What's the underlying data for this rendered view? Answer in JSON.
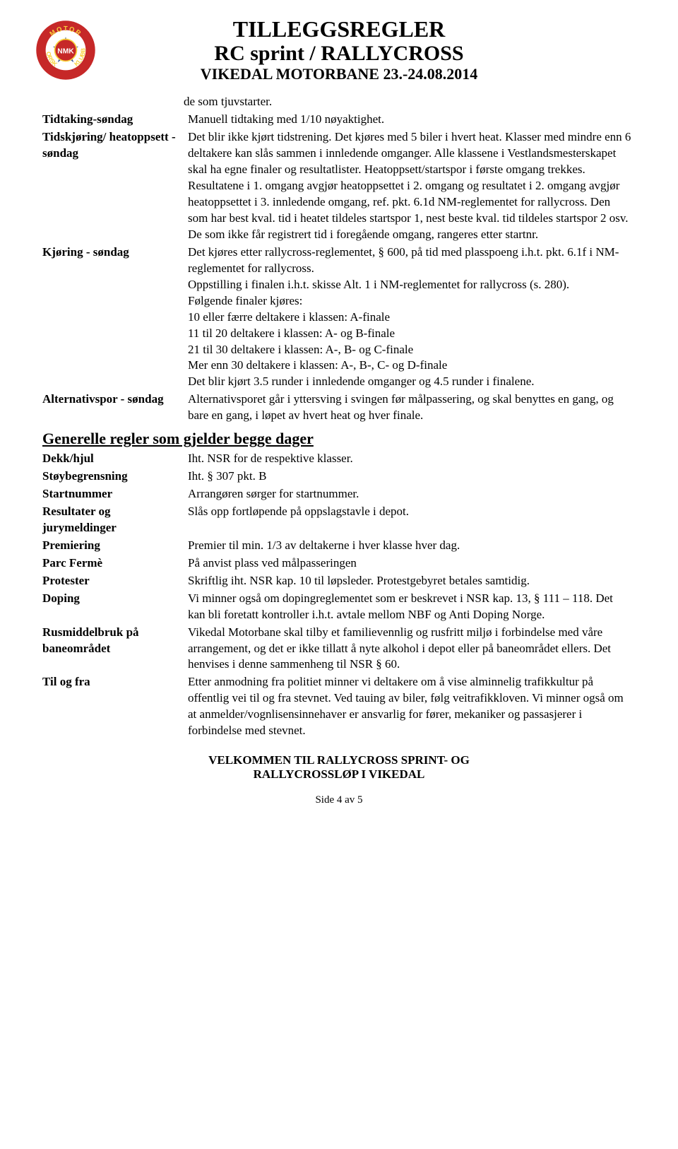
{
  "header": {
    "title_line1": "TILLEGGSREGLER",
    "title_line2": "RC sprint / RALLYCROSS",
    "title_line3": "VIKEDAL MOTORBANE 23.-24.08.2014"
  },
  "logo": {
    "outer_text_top": "NORSK",
    "outer_text_left": "MOTOR",
    "outer_text_right": "KLUBB",
    "center_text": "NMK",
    "colors": {
      "ring": "#c62828",
      "ring_text": "#f9d23c",
      "center": "#c62828",
      "center_text": "#ffffff",
      "center_outline": "#f9d23c",
      "star": "#3b5fa0"
    }
  },
  "intro_text": "de som tjuvstarter.",
  "rows_top": [
    {
      "label": "Tidtaking-søndag",
      "text": "Manuell tidtaking med 1/10 nøyaktighet."
    },
    {
      "label": "Tidskjøring/ heatoppsett  - søndag",
      "text": "Det blir ikke kjørt tidstrening. Det kjøres med 5 biler i hvert heat. Klasser med mindre enn 6 deltakere kan slås sammen i innledende omganger. Alle klassene i Vestlandsmesterskapet skal ha egne finaler og resultatlister. Heatoppsett/startspor i første omgang trekkes. Resultatene i 1. omgang avgjør heatoppsettet i 2. omgang og resultatet i 2. omgang avgjør heatoppsettet i 3. innledende omgang, ref. pkt. 6.1d NM-reglementet for rallycross. Den som har best kval. tid i heatet tildeles startspor 1, nest beste kval. tid tildeles startspor 2 osv. De som ikke får registrert tid i foregående omgang, rangeres etter startnr."
    },
    {
      "label": "Kjøring - søndag",
      "text": "Det kjøres etter rallycross-reglementet, § 600, på tid med plasspoeng i.h.t. pkt. 6.1f i NM-reglementet for rallycross.\nOppstilling i finalen i.h.t. skisse Alt. 1 i NM-reglementet for rallycross (s. 280).\nFølgende finaler kjøres:\n10 eller færre deltakere i klassen: A-finale\n11 til 20 deltakere i klassen: A- og B-finale\n21 til 30 deltakere i klassen: A-, B- og C-finale\nMer enn 30 deltakere i klassen: A-, B-, C- og D-finale\nDet blir kjørt 3.5 runder i innledende omganger og 4.5 runder i finalene."
    },
    {
      "label": "Alternativspor - søndag",
      "text": "Alternativsporet går i yttersving i svingen før målpassering, og skal benyttes en gang, og bare en gang, i løpet av hvert heat og hver finale."
    }
  ],
  "section_heading": "Generelle regler som gjelder begge dager",
  "rows_general": [
    {
      "label": "Dekk/hjul",
      "text": "Iht. NSR for de respektive klasser."
    },
    {
      "label": "Støybegrensning",
      "text": "Iht. § 307 pkt. B"
    },
    {
      "label": "Startnummer",
      "text": "Arrangøren sørger for startnummer."
    },
    {
      "label": "Resultater og jurymeldinger",
      "text": "Slås opp fortløpende på oppslagstavle i depot."
    },
    {
      "label": "Premiering",
      "text": "Premier til min. 1/3 av deltakerne i hver klasse hver dag."
    },
    {
      "label": "Parc Fermè",
      "text": "På anvist plass ved målpasseringen"
    },
    {
      "label": "Protester",
      "text": "Skriftlig iht. NSR kap. 10 til løpsleder. Protestgebyret betales samtidig."
    },
    {
      "label": "Doping",
      "text": "Vi minner også om dopingreglementet som er beskrevet i NSR kap. 13, § 111 – 118. Det kan bli foretatt kontroller i.h.t. avtale mellom NBF og Anti Doping Norge."
    },
    {
      "label": "Rusmiddelbruk på baneområdet",
      "text": "Vikedal Motorbane skal tilby et familievennlig og rusfritt miljø i forbindelse med våre arrangement, og det er ikke tillatt å nyte alkohol i depot eller på baneområdet ellers. Det henvises i denne sammenheng til NSR § 60."
    },
    {
      "label": "Til og fra",
      "text": "Etter anmodning fra politiet minner vi deltakere om å vise alminnelig trafikkultur på offentlig vei til og fra stevnet. Ved tauing av biler, følg veitrafikkloven. Vi minner også om at anmelder/vognlisensinnehaver er ansvarlig for fører, mekaniker og passasjerer i forbindelse med stevnet."
    }
  ],
  "footer_line1": "VELKOMMEN TIL RALLYCROSS SPRINT- OG",
  "footer_line2": "RALLYCROSSLØP I VIKEDAL",
  "page_number": "Side 4 av 5"
}
